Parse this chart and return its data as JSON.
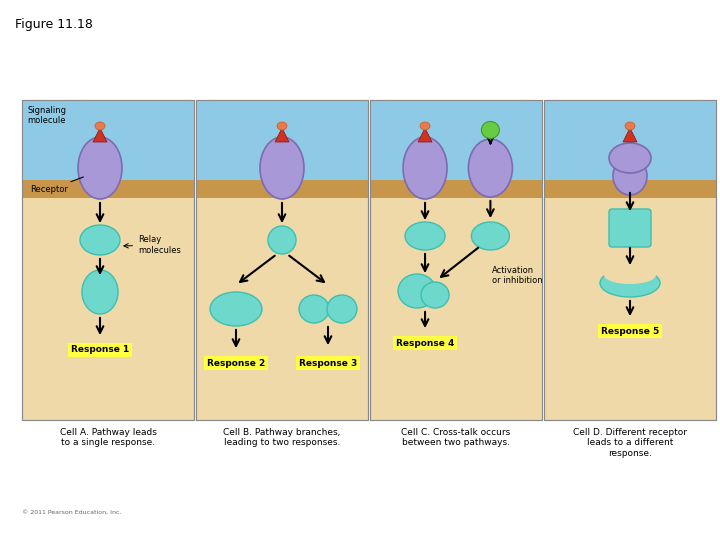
{
  "title": "Figure 11.18",
  "bg_color": "#f0d9a8",
  "sky_color": "#8ecae6",
  "membrane_color": "#c8964a",
  "teal": "#3dbfb0",
  "teal_light": "#6ed8cc",
  "purple": "#7b6bb0",
  "purple_light": "#a898d8",
  "red_sig": "#cc3322",
  "green_dot": "#66cc44",
  "yellow_bg": "#ffff44",
  "response_labels": [
    "Response 1",
    "Response 2",
    "Response 3",
    "Response 4",
    "Response 5"
  ],
  "cell_labels": [
    "Cell A. Pathway leads\nto a single response.",
    "Cell B. Pathway branches,\nleading to two responses.",
    "Cell C. Cross-talk occurs\nbetween two pathways.",
    "Cell D. Different receptor\nleads to a different\nresponse."
  ],
  "sig_label": "Signaling\nmolecule",
  "receptor_label": "Receptor",
  "relay_label": "Relay\nmolecules",
  "activ_label": "Activation\nor inhibition",
  "copyright": "© 2011 Pearson Education, Inc."
}
